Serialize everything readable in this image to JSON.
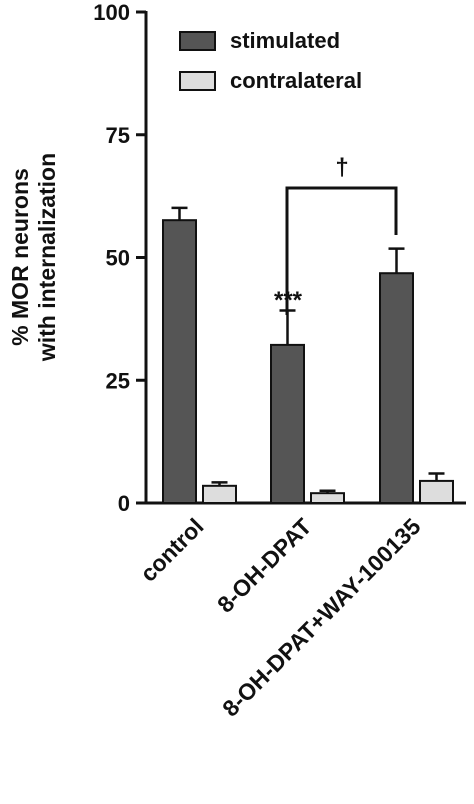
{
  "chart_data": {
    "type": "bar",
    "categories": [
      "control",
      "8-OH-DPAT",
      "8-OH-DPAT+WAY-100135"
    ],
    "series": [
      {
        "name": "stimulated",
        "color": "#555555",
        "values": [
          57.6,
          32.2,
          46.8
        ],
        "errors": [
          2.5,
          7,
          5
        ]
      },
      {
        "name": "contralateral",
        "color": "#dddddd",
        "values": [
          3.5,
          2,
          4.5
        ],
        "errors": [
          0.7,
          0.5,
          1.5
        ]
      }
    ],
    "ylabel": [
      "% MOR neurons",
      "with internalization"
    ],
    "ylim": [
      0,
      100
    ],
    "yticks": [
      0,
      25,
      50,
      75,
      100
    ],
    "annotations": [
      "***",
      "†"
    ]
  }
}
